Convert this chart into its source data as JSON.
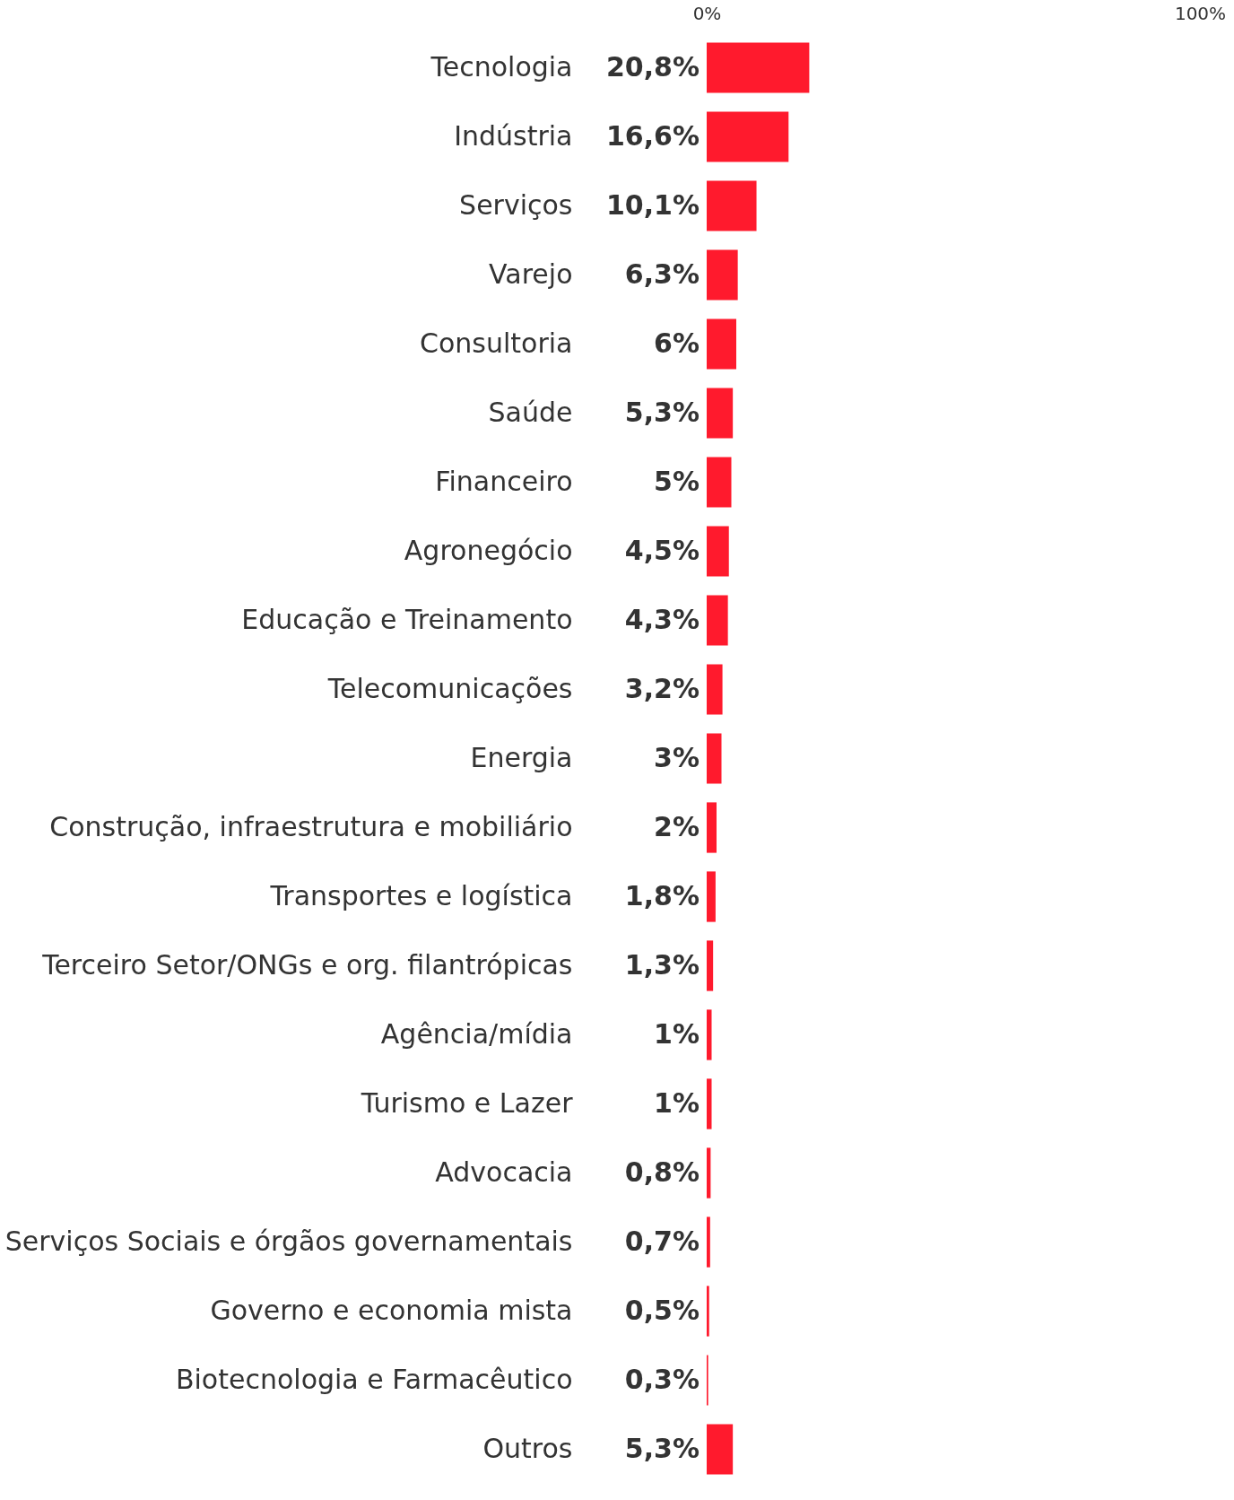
{
  "chart_data": {
    "type": "bar",
    "orientation": "horizontal",
    "categories": [
      "Tecnologia",
      "Indústria",
      "Serviços",
      "Varejo",
      "Consultoria",
      "Saúde",
      "Financeiro",
      "Agronegócio",
      "Educação e Treinamento",
      "Telecomunicações",
      "Energia",
      "Construção, infraestrutura e mobiliário",
      "Transportes e logística",
      "Terceiro Setor/ONGs e org. filantrópicas",
      "Agência/mídia",
      "Turismo e Lazer",
      "Advocacia",
      "Serviços Sociais e órgãos governamentais",
      "Governo e economia mista",
      "Biotecnologia e Farmacêutico",
      "Outros"
    ],
    "values": [
      20.8,
      16.6,
      10.1,
      6.3,
      6,
      5.3,
      5,
      4.5,
      4.3,
      3.2,
      3,
      2,
      1.8,
      1.3,
      1,
      1,
      0.8,
      0.7,
      0.5,
      0.3,
      5.3
    ],
    "value_labels": [
      "20,8%",
      "16,6%",
      "10,1%",
      "6,3%",
      "6%",
      "5,3%",
      "5%",
      "4,5%",
      "4,3%",
      "3,2%",
      "3%",
      "2%",
      "1,8%",
      "1,3%",
      "1%",
      "1%",
      "0,8%",
      "0,7%",
      "0,5%",
      "0,3%",
      "5,3%"
    ],
    "color": "#ff1a2d",
    "xlim": [
      0,
      100
    ],
    "xticks": [
      {
        "value": 0,
        "label": "0%"
      },
      {
        "value": 100,
        "label": "100%"
      }
    ],
    "grid": false
  }
}
